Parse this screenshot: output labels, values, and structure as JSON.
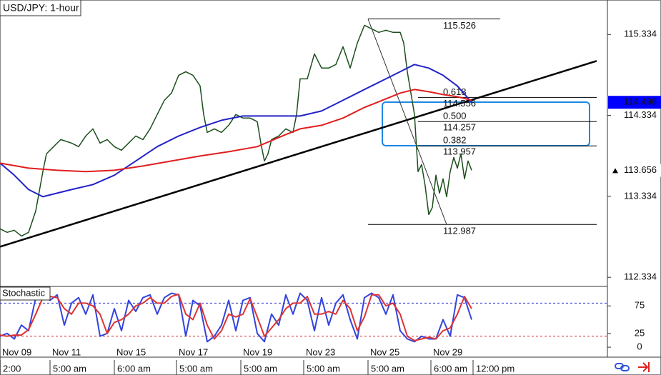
{
  "chart_data": [
    {
      "type": "line",
      "title": "USD/JPY: 1-hour",
      "xlim": [
        0,
        425
      ],
      "ylim": [
        112.23,
        115.76
      ],
      "yticks": [
        115.334,
        114.334,
        113.334,
        112.334
      ],
      "series": [
        {
          "color": "#1c4f1c",
          "x": [
            0,
            5,
            10,
            15,
            20,
            25,
            30,
            32.5,
            37.5,
            42.5,
            50,
            55,
            60,
            65,
            70,
            75,
            80,
            85,
            90,
            95,
            100,
            105,
            110,
            115,
            120,
            125,
            130,
            135,
            140,
            142.5,
            145,
            150,
            155,
            160,
            165,
            170,
            175,
            180,
            182.5,
            185,
            187.5,
            190,
            195,
            200,
            205,
            207.5,
            210,
            215,
            220,
            225,
            230,
            235,
            240,
            245,
            250,
            255,
            260,
            265,
            270,
            275,
            280,
            282.5,
            285,
            287.5,
            290,
            292.5,
            295,
            297.5,
            300,
            302.5,
            305,
            307.5,
            310,
            312.5,
            315,
            317.5,
            320,
            322.5,
            325,
            327.5,
            330
          ],
          "values": [
            112.933,
            112.889,
            112.915,
            112.844,
            112.889,
            113.153,
            113.639,
            113.859,
            113.948,
            114.036,
            113.992,
            113.948,
            114.08,
            114.168,
            113.992,
            114.036,
            113.948,
            113.904,
            113.992,
            114.08,
            114.036,
            114.168,
            114.345,
            114.521,
            114.61,
            114.83,
            114.874,
            114.83,
            114.698,
            114.345,
            114.124,
            114.168,
            114.124,
            114.212,
            114.345,
            114.301,
            114.301,
            114.257,
            113.992,
            113.771,
            113.859,
            114.036,
            114.08,
            114.168,
            114.124,
            114.345,
            114.786,
            114.786,
            115.095,
            114.919,
            114.919,
            114.963,
            115.183,
            114.919,
            115.227,
            115.448,
            115.404,
            115.36,
            115.386,
            115.36,
            115.36,
            115.227,
            114.874,
            114.61,
            114.345,
            113.639,
            113.727,
            113.462,
            113.109,
            113.197,
            113.595,
            113.374,
            113.55,
            113.33,
            113.639,
            113.815,
            113.683,
            113.859,
            113.55,
            113.771,
            113.656
          ]
        },
        {
          "color": "#2323c8",
          "x": [
            0,
            10,
            20,
            30,
            40,
            50,
            65,
            80,
            95,
            110,
            125,
            140,
            155,
            170,
            185,
            200,
            210,
            225,
            240,
            250,
            260,
            270,
            280,
            290,
            300,
            310,
            320,
            330
          ],
          "values": [
            113.745,
            113.595,
            113.418,
            113.33,
            113.374,
            113.418,
            113.48,
            113.595,
            113.771,
            113.948,
            114.08,
            114.186,
            114.274,
            114.327,
            114.327,
            114.327,
            114.327,
            114.389,
            114.521,
            114.61,
            114.698,
            114.786,
            114.874,
            114.963,
            114.919,
            114.83,
            114.698,
            114.496
          ]
        },
        {
          "color": "#e01e1e",
          "x": [
            0,
            20,
            40,
            60,
            80,
            100,
            120,
            140,
            160,
            180,
            200,
            210,
            225,
            240,
            255,
            270,
            280,
            290,
            300,
            310,
            320,
            330
          ],
          "values": [
            113.745,
            113.683,
            113.656,
            113.639,
            113.656,
            113.709,
            113.771,
            113.833,
            113.886,
            113.948,
            114.098,
            114.168,
            114.212,
            114.301,
            114.433,
            114.539,
            114.61,
            114.654,
            114.627,
            114.592,
            114.565,
            114.521
          ]
        }
      ],
      "trendline": {
        "color": "#000000",
        "x": [
          0,
          417.5
        ],
        "values": [
          112.712,
          115.007
        ]
      },
      "fibonacci": {
        "high": 115.526,
        "low": 112.987,
        "high_x": 257.5,
        "low_x": 312.5,
        "levels": [
          {
            "ratio": "0.618",
            "value": 114.556
          },
          {
            "ratio": "0.500",
            "value": 114.257
          },
          {
            "ratio": "0.382",
            "value": 113.957
          }
        ]
      },
      "last_prices": [
        {
          "value": 114.496,
          "color": "#0000ff"
        },
        {
          "value": 113.656,
          "color": "#ffffff"
        }
      ]
    },
    {
      "type": "line",
      "title": "Stochastic",
      "xlim": [
        0,
        425
      ],
      "ylim": [
        -18,
        109
      ],
      "yticks": [
        75,
        25,
        0
      ],
      "levels": [
        {
          "value": 80,
          "color": "#2a2ad0"
        },
        {
          "value": 20,
          "color": "#d02020"
        }
      ],
      "series": [
        {
          "color": "#3344dd",
          "x": [
            0,
            5,
            10,
            15,
            20,
            25,
            30,
            35,
            40,
            45,
            50,
            55,
            60,
            65,
            70,
            75,
            80,
            85,
            90,
            95,
            100,
            105,
            110,
            115,
            120,
            125,
            130,
            135,
            140,
            145,
            150,
            155,
            160,
            165,
            170,
            175,
            180,
            185,
            190,
            195,
            200,
            205,
            210,
            215,
            220,
            225,
            230,
            235,
            240,
            245,
            250,
            255,
            260,
            265,
            270,
            275,
            280,
            285,
            290,
            295,
            300,
            305,
            310,
            315,
            320,
            325,
            330
          ],
          "values": [
            20,
            25,
            15,
            40,
            30,
            90,
            95,
            85,
            95,
            40,
            80,
            90,
            60,
            95,
            20,
            25,
            70,
            30,
            85,
            65,
            90,
            95,
            60,
            90,
            98,
            95,
            20,
            85,
            75,
            10,
            20,
            40,
            85,
            30,
            85,
            90,
            25,
            10,
            60,
            40,
            95,
            60,
            98,
            85,
            30,
            90,
            40,
            80,
            95,
            50,
            15,
            90,
            98,
            90,
            60,
            95,
            30,
            15,
            10,
            20,
            15,
            15,
            50,
            20,
            95,
            90,
            50
          ]
        },
        {
          "color": "#dd3333",
          "x": [
            0,
            5,
            10,
            15,
            20,
            25,
            30,
            35,
            40,
            45,
            50,
            55,
            60,
            65,
            70,
            75,
            80,
            85,
            90,
            95,
            100,
            105,
            110,
            115,
            120,
            125,
            130,
            135,
            140,
            145,
            150,
            155,
            160,
            165,
            170,
            175,
            180,
            185,
            190,
            195,
            200,
            205,
            210,
            215,
            220,
            225,
            230,
            235,
            240,
            245,
            250,
            255,
            260,
            265,
            270,
            275,
            280,
            285,
            290,
            295,
            300,
            305,
            310,
            315,
            320,
            325,
            330
          ],
          "values": [
            22,
            20,
            22,
            22,
            32,
            60,
            90,
            92,
            90,
            70,
            60,
            80,
            80,
            75,
            60,
            25,
            45,
            50,
            60,
            75,
            80,
            90,
            80,
            80,
            92,
            96,
            60,
            50,
            80,
            40,
            15,
            30,
            60,
            55,
            60,
            88,
            55,
            20,
            35,
            50,
            70,
            80,
            80,
            92,
            60,
            60,
            65,
            60,
            85,
            70,
            30,
            55,
            95,
            95,
            75,
            80,
            60,
            20,
            12,
            15,
            18,
            15,
            30,
            35,
            60,
            92,
            70
          ]
        }
      ],
      "xticks": [
        {
          "value": 0,
          "label": "Nov 09"
        },
        {
          "value": 35,
          "label": "Nov 11"
        },
        {
          "value": 80,
          "label": "Nov 15"
        },
        {
          "value": 123.5,
          "label": "Nov 17"
        },
        {
          "value": 168.5,
          "label": "Nov 19"
        },
        {
          "value": 212.5,
          "label": "Nov 23"
        },
        {
          "value": 257.5,
          "label": "Nov 25"
        },
        {
          "value": 301.5,
          "label": "Nov 29"
        }
      ],
      "xticks_time": [
        {
          "value": 0,
          "label": "2:00"
        },
        {
          "value": 35,
          "label": "5:00 am"
        },
        {
          "value": 80,
          "label": "6:00 am"
        },
        {
          "value": 123.5,
          "label": "5:00 am"
        },
        {
          "value": 168.5,
          "label": "5:00 am"
        },
        {
          "value": 212.5,
          "label": "5:00 am"
        },
        {
          "value": 257.5,
          "label": "5:00 am"
        },
        {
          "value": 301.5,
          "label": "6:00 am"
        },
        {
          "value": 331,
          "label": "12:00 pm"
        }
      ]
    }
  ]
}
